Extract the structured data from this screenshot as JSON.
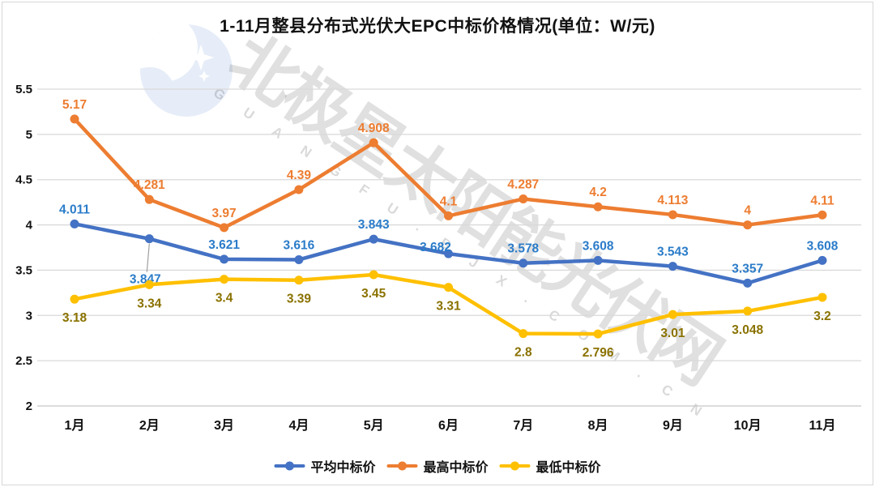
{
  "title": "1-11月整县分布式光伏大EPC中标价格情况(单位：W/元)",
  "watermark": {
    "cn": "北极星太阳能光伏网",
    "en": "G U A N G F U . B J X . C O M . C N"
  },
  "icons": {
    "logo": "moon-stars-logo"
  },
  "chart_data": {
    "type": "line",
    "title": "1-11月整县分布式光伏大EPC中标价格情况",
    "unit": "W/元",
    "categories": [
      "1月",
      "2月",
      "3月",
      "4月",
      "5月",
      "6月",
      "7月",
      "8月",
      "9月",
      "10月",
      "11月"
    ],
    "y_ticks": [
      5.5,
      5,
      4.5,
      4,
      3.5,
      3,
      2.5,
      2
    ],
    "ylim": [
      2,
      5.5
    ],
    "grid": true,
    "legend_position": "bottom",
    "colors": {
      "grid": "#d9d9d9",
      "axis": "#c8c8c8",
      "leader": "#a0a0a0",
      "tick_text": "#111111"
    },
    "series": [
      {
        "name": "平均中标价",
        "color": "#4472C4",
        "label_color": "#2B7CC9",
        "values": [
          4.011,
          3.847,
          3.621,
          3.616,
          3.843,
          3.682,
          3.578,
          3.608,
          3.543,
          3.357,
          3.608
        ],
        "label_position": "above",
        "label_overrides": {
          "1": {
            "dx": -5,
            "dy": 55,
            "leader": true
          },
          "5": {
            "dx": -16,
            "dy": -3
          }
        }
      },
      {
        "name": "最高中标价",
        "color": "#ED7D31",
        "label_color": "#ED7D31",
        "values": [
          5.17,
          4.281,
          3.97,
          4.39,
          4.908,
          4.1,
          4.287,
          4.2,
          4.113,
          4,
          4.11
        ],
        "label_position": "above",
        "label_overrides": {}
      },
      {
        "name": "最低中标价",
        "color": "#FFC000",
        "label_color": "#8A7200",
        "values": [
          3.18,
          3.34,
          3.4,
          3.39,
          3.45,
          3.31,
          2.8,
          2.796,
          3.01,
          3.048,
          3.2
        ],
        "label_position": "below",
        "label_overrides": {}
      }
    ]
  }
}
